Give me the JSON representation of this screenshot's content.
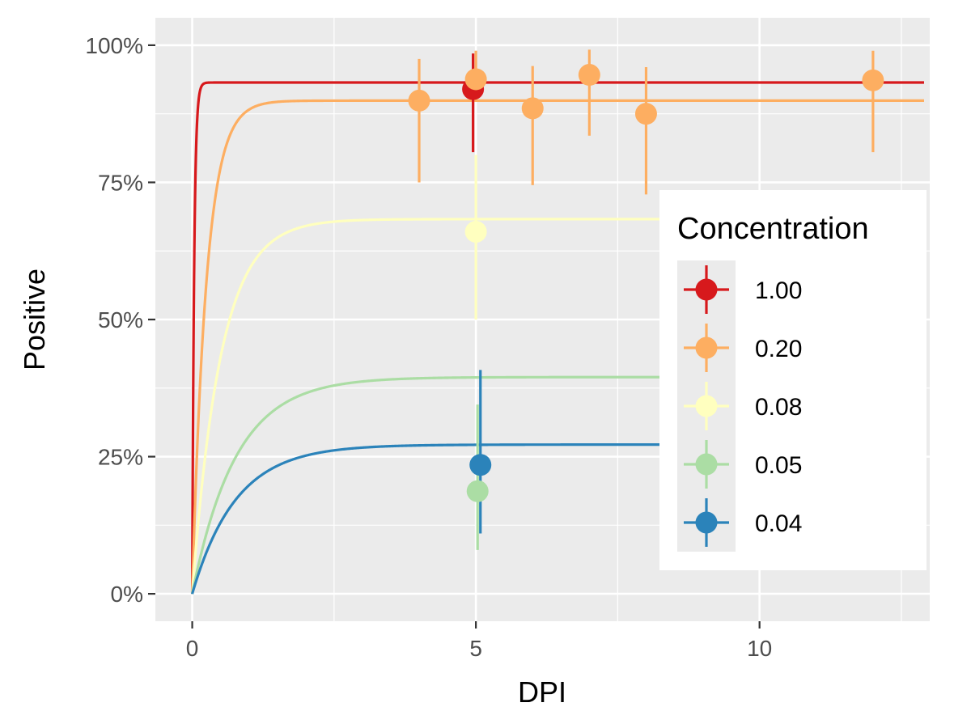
{
  "chart_data": {
    "type": "scatter",
    "xlabel": "DPI",
    "ylabel": "Positive",
    "xlim": [
      -0.65,
      13.0
    ],
    "ylim": [
      -0.05,
      1.05
    ],
    "x_ticks": [
      0,
      5,
      10
    ],
    "x_tick_labels": [
      "0",
      "5",
      "10"
    ],
    "y_ticks": [
      0,
      0.25,
      0.5,
      0.75,
      1.0
    ],
    "y_tick_labels": [
      "0%",
      "25%",
      "50%",
      "75%",
      "100%"
    ],
    "grid": true,
    "legend": {
      "title": "Concentration",
      "position": "right"
    },
    "curve_x_max": 12.9,
    "series": [
      {
        "name": "1.00",
        "color": "#d7191c",
        "plateau": 0.932,
        "rate": 30.0,
        "points": [
          {
            "x": 4.95,
            "y": 0.92,
            "ymin": 0.805,
            "ymax": 0.985
          }
        ]
      },
      {
        "name": "0.20",
        "color": "#fdae61",
        "plateau": 0.899,
        "rate": 4.0,
        "points": [
          {
            "x": 4.0,
            "y": 0.899,
            "ymin": 0.75,
            "ymax": 0.975
          },
          {
            "x": 5.0,
            "y": 0.938,
            "ymin": 0.91,
            "ymax": 0.99
          },
          {
            "x": 6.0,
            "y": 0.885,
            "ymin": 0.745,
            "ymax": 0.962
          },
          {
            "x": 7.0,
            "y": 0.946,
            "ymin": 0.835,
            "ymax": 0.992
          },
          {
            "x": 8.0,
            "y": 0.875,
            "ymin": 0.728,
            "ymax": 0.96
          },
          {
            "x": 12.0,
            "y": 0.936,
            "ymin": 0.805,
            "ymax": 0.99
          }
        ]
      },
      {
        "name": "0.08",
        "color": "#ffffbf",
        "plateau": 0.683,
        "rate": 2.0,
        "points": [
          {
            "x": 5.0,
            "y": 0.66,
            "ymin": 0.5,
            "ymax": 0.8
          }
        ]
      },
      {
        "name": "0.05",
        "color": "#abdda4",
        "plateau": 0.395,
        "rate": 1.3,
        "points": [
          {
            "x": 5.03,
            "y": 0.187,
            "ymin": 0.08,
            "ymax": 0.345
          }
        ]
      },
      {
        "name": "0.04",
        "color": "#2b83ba",
        "plateau": 0.272,
        "rate": 1.3,
        "points": [
          {
            "x": 5.08,
            "y": 0.235,
            "ymin": 0.11,
            "ymax": 0.408
          }
        ]
      }
    ]
  }
}
